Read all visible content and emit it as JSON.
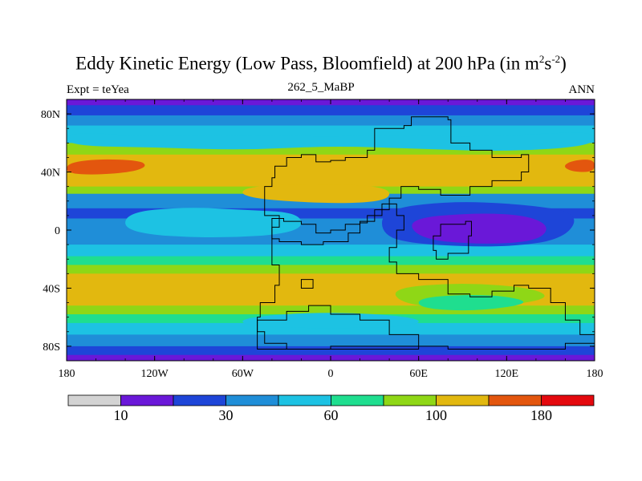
{
  "chart_data": {
    "type": "heatmap",
    "title_main": "Eddy Kinetic Energy (Low Pass, Bloomfield) at 200 hPa (in m",
    "title_sup1": "2",
    "title_mid": "s",
    "title_sup2": "-2",
    "title_end": ")",
    "subtitle": "262_5_MaBP",
    "left_string": "Expt = teYea",
    "right_string": "ANN",
    "x_axis": {
      "range": [
        -180,
        180
      ],
      "ticks": [
        -180,
        -120,
        -60,
        0,
        60,
        120,
        180
      ],
      "tick_labels": [
        "180",
        "120W",
        "60W",
        "0",
        "60E",
        "120E",
        "180"
      ]
    },
    "y_axis": {
      "range": [
        -90,
        90
      ],
      "ticks": [
        80,
        40,
        0,
        -40,
        -80
      ],
      "tick_labels": [
        "80N",
        "40N",
        "0",
        "40S",
        "80S"
      ]
    },
    "colorbar": {
      "colors": [
        "#d3d3d3",
        "#6a18d8",
        "#1e45d8",
        "#1f8ed8",
        "#1dc2e3",
        "#1fde8f",
        "#8fd716",
        "#e2b80f",
        "#e3560e",
        "#e4090e"
      ],
      "levels": [
        10,
        30,
        60,
        100,
        180
      ],
      "level_indices": [
        1,
        3,
        5,
        7,
        9
      ]
    },
    "bands": [
      {
        "lat_from": 90,
        "lat_to": 86,
        "level": 1
      },
      {
        "lat_from": 86,
        "lat_to": 79,
        "level": 2
      },
      {
        "lat_from": 79,
        "lat_to": 72,
        "level": 3
      },
      {
        "lat_from": 72,
        "lat_to": 60,
        "level": 4
      },
      {
        "lat_from": 60,
        "lat_to": 52,
        "level": 6
      },
      {
        "lat_from": 52,
        "lat_to": 30,
        "level": 7
      },
      {
        "lat_from": 30,
        "lat_to": 25,
        "level": 6
      },
      {
        "lat_from": 25,
        "lat_to": 15,
        "level": 3
      },
      {
        "lat_from": 15,
        "lat_to": 8,
        "level": 2
      },
      {
        "lat_from": 8,
        "lat_to": -10,
        "level": 3
      },
      {
        "lat_from": -10,
        "lat_to": -18,
        "level": 4
      },
      {
        "lat_from": -18,
        "lat_to": -24,
        "level": 5
      },
      {
        "lat_from": -24,
        "lat_to": -30,
        "level": 6
      },
      {
        "lat_from": -30,
        "lat_to": -52,
        "level": 7
      },
      {
        "lat_from": -52,
        "lat_to": -58,
        "level": 6
      },
      {
        "lat_from": -58,
        "lat_to": -64,
        "level": 5
      },
      {
        "lat_from": -64,
        "lat_to": -72,
        "level": 4
      },
      {
        "lat_from": -72,
        "lat_to": -80,
        "level": 3
      },
      {
        "lat_from": -80,
        "lat_to": -86,
        "level": 2
      },
      {
        "lat_from": -86,
        "lat_to": -90,
        "level": 1
      }
    ],
    "blobs": [
      {
        "name": "north-pacific-jet-max",
        "points": [
          [
            -180,
            46
          ],
          [
            -160,
            49
          ],
          [
            -130,
            48
          ],
          [
            -125,
            44
          ],
          [
            -135,
            40
          ],
          [
            -160,
            38
          ],
          [
            -180,
            39
          ]
        ],
        "level": 8
      },
      {
        "name": "dateline-east-jet-max",
        "points": [
          [
            180,
            49
          ],
          [
            165,
            48
          ],
          [
            158,
            44
          ],
          [
            165,
            40
          ],
          [
            180,
            40
          ]
        ],
        "level": 8
      },
      {
        "name": "polar-cyan-north",
        "points": [
          [
            -180,
            68
          ],
          [
            -120,
            64
          ],
          [
            -60,
            66
          ],
          [
            0,
            64
          ],
          [
            40,
            66
          ],
          [
            90,
            64
          ],
          [
            140,
            66
          ],
          [
            180,
            68
          ],
          [
            180,
            58
          ],
          [
            120,
            54
          ],
          [
            60,
            56
          ],
          [
            0,
            58
          ],
          [
            -60,
            55
          ],
          [
            -120,
            57
          ],
          [
            -180,
            58
          ]
        ],
        "level": 4
      },
      {
        "name": "tropical-yellow-atlantic",
        "points": [
          [
            -60,
            30
          ],
          [
            -10,
            32
          ],
          [
            40,
            30
          ],
          [
            40,
            20
          ],
          [
            0,
            18
          ],
          [
            -60,
            22
          ]
        ],
        "level": 7
      },
      {
        "name": "equatorial-cyan-east-pacific",
        "points": [
          [
            -140,
            12
          ],
          [
            -100,
            16
          ],
          [
            -60,
            14
          ],
          [
            -20,
            12
          ],
          [
            -20,
            -2
          ],
          [
            -80,
            -6
          ],
          [
            -140,
            -2
          ]
        ],
        "level": 4
      },
      {
        "name": "indian-ocean-dark",
        "points": [
          [
            35,
            14
          ],
          [
            80,
            20
          ],
          [
            130,
            18
          ],
          [
            170,
            12
          ],
          [
            160,
            -6
          ],
          [
            120,
            -12
          ],
          [
            60,
            -10
          ],
          [
            35,
            -4
          ]
        ],
        "level": 2
      },
      {
        "name": "indian-ocean-purple",
        "points": [
          [
            52,
            8
          ],
          [
            100,
            12
          ],
          [
            135,
            10
          ],
          [
            150,
            2
          ],
          [
            140,
            -8
          ],
          [
            100,
            -10
          ],
          [
            60,
            -6
          ]
        ],
        "level": 1
      },
      {
        "name": "south-green-indian",
        "points": [
          [
            40,
            -40
          ],
          [
            90,
            -36
          ],
          [
            140,
            -40
          ],
          [
            150,
            -48
          ],
          [
            100,
            -54
          ],
          [
            50,
            -52
          ]
        ],
        "level": 6
      },
      {
        "name": "south-cyan-indian",
        "points": [
          [
            60,
            -46
          ],
          [
            110,
            -44
          ],
          [
            140,
            -50
          ],
          [
            100,
            -56
          ],
          [
            60,
            -54
          ]
        ],
        "level": 5
      },
      {
        "name": "south-lightblue-atlantic",
        "points": [
          [
            -60,
            -60
          ],
          [
            0,
            -56
          ],
          [
            60,
            -60
          ],
          [
            60,
            -66
          ],
          [
            0,
            -68
          ],
          [
            -60,
            -66
          ]
        ],
        "level": 4
      }
    ],
    "continents": [
      {
        "name": "laurasia",
        "points": [
          [
            -38,
            44
          ],
          [
            -30,
            50
          ],
          [
            -20,
            52
          ],
          [
            -10,
            47
          ],
          [
            0,
            48
          ],
          [
            10,
            50
          ],
          [
            25,
            55
          ],
          [
            30,
            70
          ],
          [
            50,
            72
          ],
          [
            55,
            78
          ],
          [
            80,
            76
          ],
          [
            82,
            60
          ],
          [
            95,
            55
          ],
          [
            110,
            50
          ],
          [
            130,
            52
          ],
          [
            135,
            40
          ],
          [
            130,
            34
          ],
          [
            118,
            34
          ],
          [
            110,
            30
          ],
          [
            95,
            24
          ],
          [
            75,
            28
          ],
          [
            60,
            30
          ],
          [
            48,
            22
          ],
          [
            40,
            18
          ],
          [
            35,
            10
          ],
          [
            25,
            5
          ],
          [
            20,
            -2
          ],
          [
            12,
            -8
          ],
          [
            -5,
            -10
          ],
          [
            -20,
            -8
          ],
          [
            -35,
            -6
          ],
          [
            -40,
            2
          ],
          [
            -35,
            10
          ],
          [
            -42,
            10
          ],
          [
            -45,
            18
          ],
          [
            -45,
            30
          ],
          [
            -40,
            36
          ]
        ]
      },
      {
        "name": "gondwana-west",
        "points": [
          [
            -40,
            8
          ],
          [
            -32,
            6
          ],
          [
            -20,
            4
          ],
          [
            -10,
            -2
          ],
          [
            0,
            0
          ],
          [
            10,
            4
          ],
          [
            20,
            6
          ],
          [
            30,
            14
          ],
          [
            40,
            18
          ],
          [
            45,
            10
          ],
          [
            50,
            0
          ],
          [
            45,
            -12
          ],
          [
            40,
            -22
          ],
          [
            45,
            -30
          ],
          [
            60,
            -34
          ],
          [
            80,
            -44
          ],
          [
            95,
            -46
          ],
          [
            110,
            -42
          ],
          [
            125,
            -38
          ],
          [
            135,
            -40
          ],
          [
            150,
            -50
          ],
          [
            160,
            -62
          ],
          [
            170,
            -72
          ],
          [
            180,
            -70
          ],
          [
            180,
            -78
          ],
          [
            160,
            -82
          ],
          [
            120,
            -82
          ],
          [
            80,
            -80
          ],
          [
            40,
            -80
          ],
          [
            0,
            -82
          ],
          [
            -30,
            -78
          ],
          [
            -45,
            -70
          ],
          [
            -50,
            -60
          ],
          [
            -48,
            -50
          ],
          [
            -38,
            -38
          ],
          [
            -35,
            -24
          ],
          [
            -40,
            -10
          ]
        ]
      },
      {
        "name": "india-block",
        "points": [
          [
            75,
            4
          ],
          [
            92,
            6
          ],
          [
            96,
            -4
          ],
          [
            94,
            -16
          ],
          [
            80,
            -20
          ],
          [
            72,
            -14
          ],
          [
            70,
            -4
          ]
        ]
      },
      {
        "name": "small-island",
        "points": [
          [
            -20,
            -34
          ],
          [
            -12,
            -34
          ],
          [
            -12,
            -40
          ],
          [
            -20,
            -40
          ]
        ]
      },
      {
        "name": "antarctica-west",
        "points": [
          [
            -50,
            -62
          ],
          [
            -30,
            -56
          ],
          [
            -15,
            -52
          ],
          [
            0,
            -58
          ],
          [
            20,
            -62
          ],
          [
            40,
            -72
          ],
          [
            60,
            -76
          ],
          [
            60,
            -82
          ],
          [
            -50,
            -82
          ]
        ]
      }
    ]
  }
}
